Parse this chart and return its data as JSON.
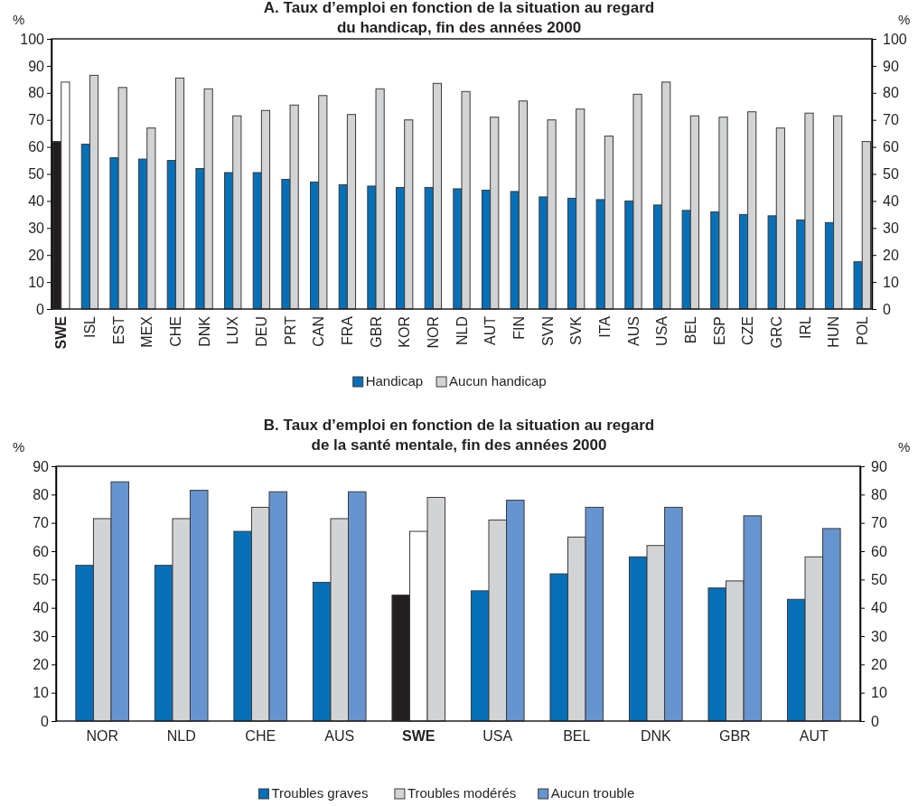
{
  "chart_data": [
    {
      "type": "bar",
      "title": "A. Taux d’emploi en fonction de la situation au regard\ndu handicap, fin des années 2000",
      "ylabel": "%",
      "y2label": "%",
      "categories": [
        "SWE",
        "ISL",
        "EST",
        "MEX",
        "CHE",
        "DNK",
        "LUX",
        "DEU",
        "PRT",
        "CAN",
        "FRA",
        "GBR",
        "KOR",
        "NOR",
        "NLD",
        "AUT",
        "FIN",
        "SVN",
        "SVK",
        "ITA",
        "AUS",
        "USA",
        "BEL",
        "ESP",
        "CZE",
        "GRC",
        "IRL",
        "HUN",
        "POL"
      ],
      "series": [
        {
          "name": "Handicap",
          "color": "#0570b8",
          "colors": [
            "#231f20",
            "#0570b8",
            "#0570b8",
            "#0570b8",
            "#0570b8",
            "#0570b8",
            "#0570b8",
            "#0570b8",
            "#0570b8",
            "#0570b8",
            "#0570b8",
            "#0570b8",
            "#0570b8",
            "#0570b8",
            "#0570b8",
            "#0570b8",
            "#0570b8",
            "#0570b8",
            "#0570b8",
            "#0570b8",
            "#0570b8",
            "#0570b8",
            "#0570b8",
            "#0570b8",
            "#0570b8",
            "#0570b8",
            "#0570b8",
            "#0570b8",
            "#0570b8"
          ],
          "values": [
            62,
            61,
            56,
            55.5,
            55,
            52,
            50.5,
            50.5,
            48,
            47,
            46,
            45.5,
            45,
            45,
            44.5,
            44,
            43.5,
            41.5,
            41,
            40.5,
            40,
            38.5,
            36.5,
            36,
            35,
            34.5,
            33,
            32,
            17.5
          ]
        },
        {
          "name": "Aucun handicap",
          "color": "#d2d3d5",
          "colors": [
            "#ffffff",
            "#d2d3d5",
            "#d2d3d5",
            "#d2d3d5",
            "#d2d3d5",
            "#d2d3d5",
            "#d2d3d5",
            "#d2d3d5",
            "#d2d3d5",
            "#d2d3d5",
            "#d2d3d5",
            "#d2d3d5",
            "#d2d3d5",
            "#d2d3d5",
            "#d2d3d5",
            "#d2d3d5",
            "#d2d3d5",
            "#d2d3d5",
            "#d2d3d5",
            "#d2d3d5",
            "#d2d3d5",
            "#d2d3d5",
            "#d2d3d5",
            "#d2d3d5",
            "#d2d3d5",
            "#d2d3d5",
            "#d2d3d5",
            "#d2d3d5",
            "#d2d3d5"
          ],
          "values": [
            84,
            86.5,
            82,
            67,
            85.5,
            81.5,
            71.5,
            73.5,
            75.5,
            79,
            72,
            81.5,
            70,
            83.5,
            80.5,
            71,
            77,
            70,
            74,
            64,
            79.5,
            84,
            71.5,
            71,
            73,
            67,
            72.5,
            71.5,
            62
          ]
        }
      ],
      "ylim": [
        0,
        100
      ],
      "yticks": [
        0,
        10,
        20,
        30,
        40,
        50,
        60,
        70,
        80,
        90,
        100
      ],
      "y2lim": [
        0,
        100
      ],
      "y2ticks": [
        0,
        10,
        20,
        30,
        40,
        50,
        60,
        70,
        80,
        90,
        100
      ],
      "grid": false,
      "legend": "bottom"
    },
    {
      "type": "bar",
      "title": "B. Taux d’emploi en fonction de la situation au regard\nde la santé mentale, fin des années 2000",
      "ylabel": "%",
      "y2label": "%",
      "categories": [
        "NOR",
        "NLD",
        "CHE",
        "AUS",
        "SWE",
        "USA",
        "BEL",
        "DNK",
        "GBR",
        "AUT"
      ],
      "series": [
        {
          "name": "Troubles graves",
          "color": "#0570b8",
          "colors": [
            "#0570b8",
            "#0570b8",
            "#0570b8",
            "#0570b8",
            "#231f20",
            "#0570b8",
            "#0570b8",
            "#0570b8",
            "#0570b8",
            "#0570b8"
          ],
          "values": [
            55,
            55,
            67,
            49,
            44.5,
            46,
            52,
            58,
            47,
            43
          ]
        },
        {
          "name": "Troubles modérés",
          "color": "#d2d3d5",
          "colors": [
            "#d2d3d5",
            "#d2d3d5",
            "#d2d3d5",
            "#d2d3d5",
            "#ffffff",
            "#d2d3d5",
            "#d2d3d5",
            "#d2d3d5",
            "#d2d3d5",
            "#d2d3d5"
          ],
          "values": [
            71.5,
            71.5,
            75.5,
            71.5,
            67,
            71,
            65,
            62,
            49.5,
            58
          ]
        },
        {
          "name": "Aucun trouble",
          "color": "#6694cf",
          "colors": [
            "#6694cf",
            "#6694cf",
            "#6694cf",
            "#6694cf",
            "#d2d3d5",
            "#6694cf",
            "#6694cf",
            "#6694cf",
            "#6694cf",
            "#6694cf"
          ],
          "values": [
            84.5,
            81.5,
            81,
            81,
            79,
            78,
            75.5,
            75.5,
            72.5,
            68
          ]
        }
      ],
      "ylim": [
        0,
        90
      ],
      "yticks": [
        0,
        10,
        20,
        30,
        40,
        50,
        60,
        70,
        80,
        90
      ],
      "y2lim": [
        0,
        90
      ],
      "y2ticks": [
        0,
        10,
        20,
        30,
        40,
        50,
        60,
        70,
        80,
        90
      ],
      "grid": false,
      "legend": "bottom"
    }
  ]
}
